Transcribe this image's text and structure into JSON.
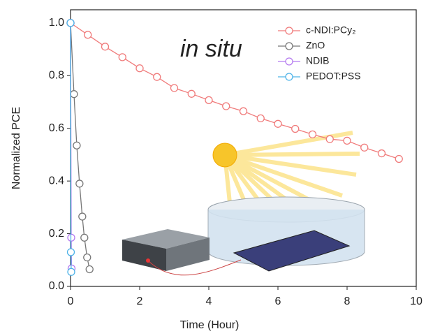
{
  "chart_data": {
    "type": "line",
    "x_label": "Time (Hour)",
    "y_label": "Normalized PCE",
    "annotation": "in situ",
    "xlim": [
      0,
      10
    ],
    "xticks": [
      0,
      2,
      4,
      6,
      8,
      10
    ],
    "ylim": [
      0,
      1.05
    ],
    "yticks": [
      {
        "value": 0,
        "label": "0.0"
      },
      0.2,
      0.4,
      0.6,
      0.8,
      {
        "value": 1,
        "label": "1.0"
      }
    ],
    "legend": "top-right",
    "series": [
      {
        "name": "c-NDI:PCy₂",
        "color": "#f07b7b",
        "x": [
          0,
          0.5,
          1,
          1.5,
          2,
          2.5,
          3,
          3.5,
          4,
          4.5,
          5,
          5.5,
          6,
          6.5,
          7,
          7.5,
          8,
          8.5,
          9,
          9.5
        ],
        "values": [
          1.0,
          0.955,
          0.91,
          0.87,
          0.828,
          0.795,
          0.753,
          0.731,
          0.707,
          0.684,
          0.665,
          0.638,
          0.617,
          0.598,
          0.577,
          0.559,
          0.553,
          0.527,
          0.505,
          0.484
        ]
      },
      {
        "name": "ZnO",
        "color": "#777777",
        "x": [
          0,
          0.1,
          0.18,
          0.26,
          0.34,
          0.4,
          0.48,
          0.55
        ],
        "values": [
          1.0,
          0.73,
          0.535,
          0.39,
          0.265,
          0.185,
          0.11,
          0.065
        ]
      },
      {
        "name": "NDIB",
        "color": "#b57bf0",
        "x": [
          0,
          0.02,
          0.03
        ],
        "values": [
          1.0,
          0.185,
          0.068
        ]
      },
      {
        "name": "PEDOT:PSS",
        "color": "#4fb3e8",
        "x": [
          0,
          0.01,
          0.02
        ],
        "values": [
          1.0,
          0.13,
          0.055
        ]
      }
    ]
  }
}
